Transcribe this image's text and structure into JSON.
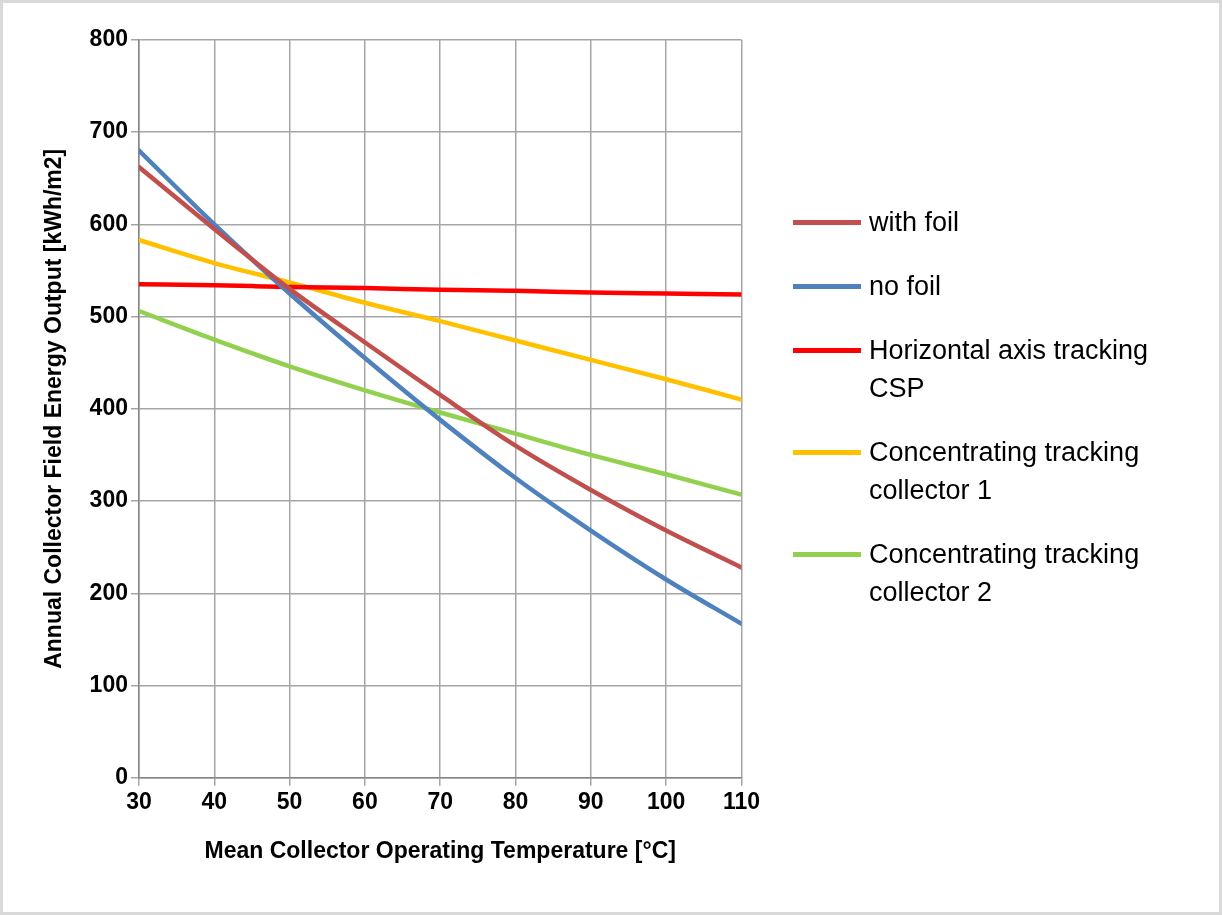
{
  "chart_data": {
    "type": "line",
    "xlabel": "Mean Collector Operating Temperature [°C]",
    "ylabel": "Annual Collector Field Energy Output [kWh/m2]",
    "x": [
      30,
      40,
      50,
      60,
      70,
      80,
      90,
      100,
      110
    ],
    "xlim": [
      30,
      110
    ],
    "xticks": [
      30,
      40,
      50,
      60,
      70,
      80,
      90,
      100,
      110
    ],
    "ylim": [
      0,
      800
    ],
    "yticks": [
      0,
      100,
      200,
      300,
      400,
      500,
      600,
      700,
      800
    ],
    "grid": true,
    "legend": "right",
    "marker": "none",
    "line_style": "solid",
    "series": [
      {
        "name": "with foil",
        "color": "#c0504d",
        "values": [
          662,
          595,
          530,
          472,
          415,
          360,
          312,
          268,
          228
        ]
      },
      {
        "name": "no foil",
        "color": "#4f81bd",
        "values": [
          680,
          600,
          525,
          455,
          388,
          325,
          268,
          215,
          167
        ]
      },
      {
        "name": "Horizontal axis tracking CSP",
        "color": "#ff0000",
        "values": [
          535,
          534,
          532,
          531,
          529,
          528,
          526,
          525,
          524
        ]
      },
      {
        "name": "Concentrating tracking collector 1",
        "color": "#ffc000",
        "values": [
          583,
          558,
          537,
          515,
          495,
          474,
          453,
          432,
          410
        ]
      },
      {
        "name": "Concentrating tracking collector 2",
        "color": "#92d050",
        "values": [
          506,
          475,
          446,
          420,
          396,
          373,
          350,
          329,
          307
        ]
      }
    ]
  }
}
